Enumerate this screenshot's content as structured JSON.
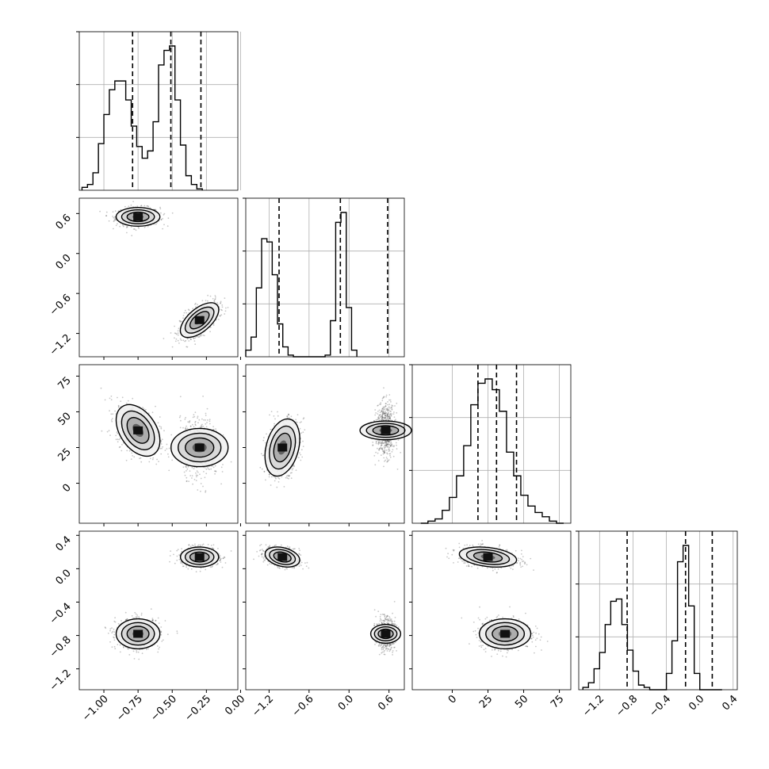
{
  "chart_data": {
    "type": "corner",
    "title": "",
    "parameters": [
      {
        "range": [
          -1.18,
          -0.02
        ],
        "ticks": [
          -1.0,
          -0.75,
          -0.5,
          -0.25,
          0.0
        ],
        "tick_labels": [
          "−1.00",
          "−0.75",
          "−0.50",
          "−0.25",
          "0.00"
        ],
        "quantiles": [
          -0.79,
          -0.51,
          -0.29
        ],
        "hist": {
          "bin_start": -1.16,
          "bin_width": 0.04,
          "counts": [
            0.02,
            0.04,
            0.12,
            0.32,
            0.52,
            0.69,
            0.75,
            0.75,
            0.62,
            0.44,
            0.3,
            0.22,
            0.27,
            0.47,
            0.86,
            0.96,
            0.99,
            0.62,
            0.31,
            0.1,
            0.04,
            0.01
          ]
        }
      },
      {
        "range": [
          -1.55,
          0.83
        ],
        "ticks": [
          -1.2,
          -0.6,
          0.0,
          0.6
        ],
        "tick_labels": [
          "−1.2",
          "−0.6",
          "0.0",
          "0.6"
        ],
        "quantiles": [
          -1.05,
          -0.13,
          0.58
        ],
        "hist": {
          "bin_start": -1.55,
          "bin_width": 0.0794,
          "counts": [
            0.04,
            0.12,
            0.42,
            0.72,
            0.7,
            0.5,
            0.2,
            0.06,
            0.01,
            0.0,
            0.0,
            0.0,
            0.0,
            0.0,
            0.0,
            0.01,
            0.22,
            0.82,
            0.88,
            0.3,
            0.04
          ]
        }
      },
      {
        "range": [
          -28,
          83
        ],
        "ticks": [
          0,
          25,
          50,
          75
        ],
        "tick_labels": [
          "0",
          "25",
          "50",
          "75"
        ],
        "quantiles": [
          18,
          31,
          45
        ],
        "hist": {
          "bin_start": -22,
          "bin_width": 5,
          "counts": [
            0.0,
            0.01,
            0.02,
            0.06,
            0.12,
            0.22,
            0.36,
            0.55,
            0.65,
            0.67,
            0.62,
            0.52,
            0.33,
            0.22,
            0.13,
            0.08,
            0.05,
            0.03,
            0.01,
            0.0
          ]
        }
      },
      {
        "range": [
          -1.45,
          0.45
        ],
        "ticks": [
          -1.2,
          -0.8,
          -0.4,
          0.0,
          0.4
        ],
        "tick_labels": [
          "−1.2",
          "−0.8",
          "−0.4",
          "0.0",
          "0.4"
        ],
        "quantiles": [
          -0.87,
          -0.17,
          0.15
        ],
        "hist": {
          "bin_start": -1.4,
          "bin_width": 0.0667,
          "counts": [
            0.01,
            0.03,
            0.09,
            0.16,
            0.28,
            0.38,
            0.39,
            0.28,
            0.17,
            0.08,
            0.02,
            0.01,
            0.0,
            0.0,
            0.0,
            0.07,
            0.21,
            0.55,
            0.62,
            0.36,
            0.07,
            0.0,
            0.0,
            0.0,
            0.0
          ]
        }
      }
    ],
    "modes": [
      {
        "p0": [
          -0.75,
          0.08
        ],
        "p1": [
          0.55,
          0.07
        ],
        "p2": [
          37,
          9
        ],
        "p3": [
          -0.78,
          0.09
        ],
        "rho01": 0.0,
        "rho02": -0.4,
        "rho03": 0.0,
        "rho12": 0.0,
        "rho13": 0.0,
        "rho23": 0.0
      },
      {
        "p0": [
          -0.3,
          0.07
        ],
        "p1": [
          -1.0,
          0.13
        ],
        "p2": [
          25,
          10
        ],
        "p3": [
          0.14,
          0.06
        ],
        "rho01": 0.6,
        "rho02": 0.0,
        "rho03": 0.0,
        "rho12": 0.3,
        "rho13": -0.3,
        "rho23": -0.3
      }
    ],
    "grid": true,
    "legend": "none"
  }
}
